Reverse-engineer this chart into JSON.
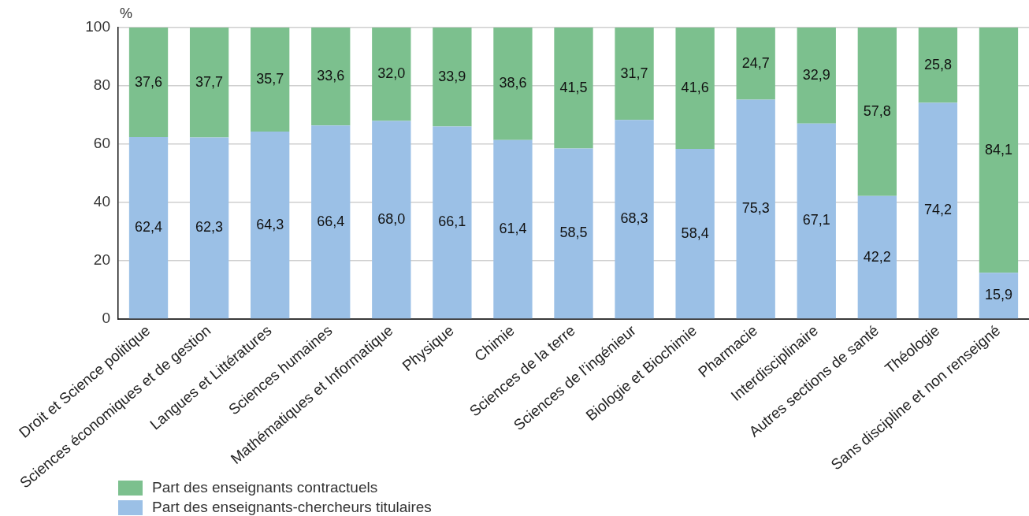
{
  "chart_data": {
    "type": "bar",
    "stacked": true,
    "categories": [
      "Droit et Science politique",
      "Sciences économiques et de gestion",
      "Langues et Littératures",
      "Sciences humaines",
      "Mathématiques et Informatique",
      "Physique",
      "Chimie",
      "Sciences de la terre",
      "Sciences de l’ingénieur",
      "Biologie et Biochimie",
      "Pharmacie",
      "Interdisciplinaire",
      "Autres sections de santé",
      "Théologie",
      "Sans discipline et non renseigné"
    ],
    "series": [
      {
        "name": "Part des enseignants-chercheurs titulaires",
        "color": "#9bc0e6",
        "values": [
          62.4,
          62.3,
          64.3,
          66.4,
          68.0,
          66.1,
          61.4,
          58.5,
          68.3,
          58.4,
          75.3,
          67.1,
          42.2,
          74.2,
          15.9
        ],
        "value_labels": [
          "62,4",
          "62,3",
          "64,3",
          "66,4",
          "68,0",
          "66,1",
          "61,4",
          "58,5",
          "68,3",
          "58,4",
          "75,3",
          "67,1",
          "42,2",
          "74,2",
          "15,9"
        ]
      },
      {
        "name": "Part des enseignants contractuels",
        "color": "#7cc08e",
        "values": [
          37.6,
          37.7,
          35.7,
          33.6,
          32.0,
          33.9,
          38.6,
          41.5,
          31.7,
          41.6,
          24.7,
          32.9,
          57.8,
          25.8,
          84.1
        ],
        "value_labels": [
          "37,6",
          "37,7",
          "35,7",
          "33,6",
          "32,0",
          "33,9",
          "38,6",
          "41,5",
          "31,7",
          "41,6",
          "24,7",
          "32,9",
          "57,8",
          "25,8",
          "84,1"
        ]
      }
    ],
    "ylabel": "%",
    "ylim": [
      0,
      100
    ],
    "yticks": [
      0,
      20,
      40,
      60,
      80,
      100
    ],
    "grid": "y",
    "legend": "bottom left"
  }
}
